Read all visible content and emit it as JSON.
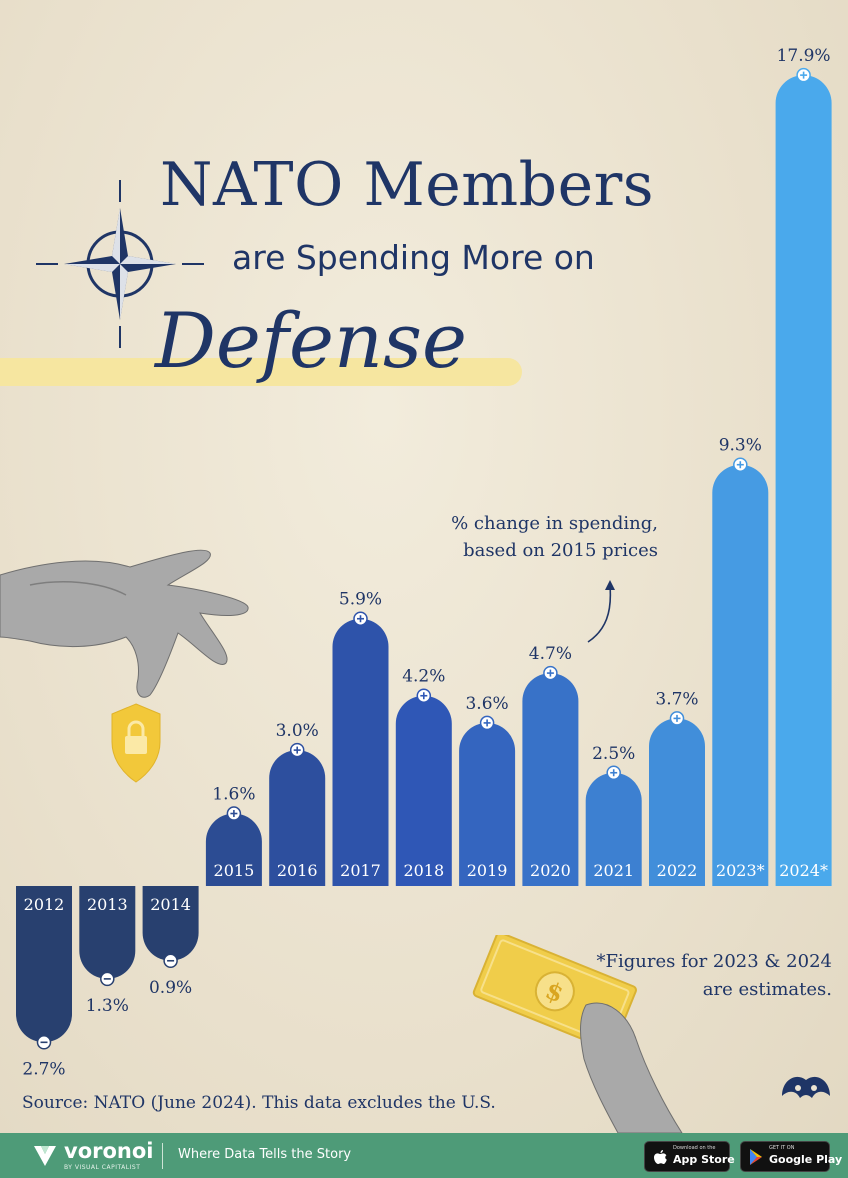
{
  "title": {
    "line1": "NATO Members",
    "line2": "are Spending More on",
    "line3": "Defense"
  },
  "annotation": "% change in spending, based on 2015 prices",
  "note": "*Figures for 2023 & 2024 are estimates.",
  "source": "Source: NATO (June 2024). This data excludes the U.S.",
  "footer": {
    "brand": "voronoi",
    "brand_sub": "BY VISUAL CAPITALIST",
    "tagline": "Where Data Tells the Story",
    "app_store_small": "Download on the",
    "app_store": "App Store",
    "google_play_small": "GET IT ON",
    "google_play": "Google Play"
  },
  "colors": {
    "dark_bar": "#28406f",
    "mid_bar": "#2f57b6",
    "bright_bar": "#4aa9ec",
    "text": "#1f3566",
    "footer": "#4e9b78",
    "lock_shield": "#f2c83a"
  },
  "icons": [
    "nato-compass-icon",
    "hand-icon",
    "lock-shield-icon",
    "cash-icon",
    "plus-icon",
    "minus-icon",
    "voronoi-logo-icon",
    "apple-icon",
    "play-icon"
  ],
  "chart_data": {
    "type": "bar",
    "title": "NATO Members are Spending More on Defense",
    "ylabel": "% change in spending, based on 2015 prices",
    "categories": [
      "2012",
      "2013",
      "2014",
      "2015",
      "2016",
      "2017",
      "2018",
      "2019",
      "2020",
      "2021",
      "2022",
      "2023*",
      "2024*"
    ],
    "values": [
      -2.7,
      -1.3,
      -0.9,
      1.6,
      3.0,
      5.9,
      4.2,
      3.6,
      4.7,
      2.5,
      3.7,
      9.3,
      17.9
    ],
    "value_labels": [
      "2.7%",
      "1.3%",
      "0.9%",
      "1.6%",
      "3.0%",
      "5.9%",
      "4.2%",
      "3.6%",
      "4.7%",
      "2.5%",
      "3.7%",
      "9.3%",
      "17.9%"
    ],
    "estimates": [
      "2023",
      "2024"
    ],
    "grid": false
  }
}
